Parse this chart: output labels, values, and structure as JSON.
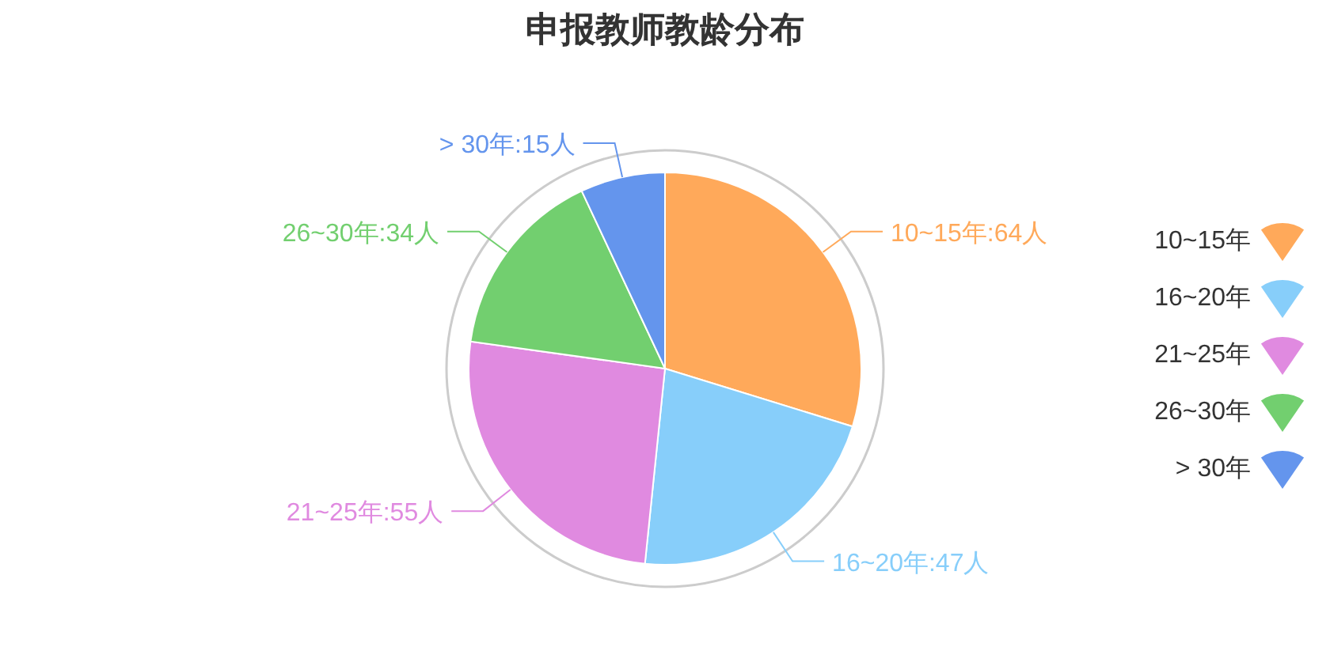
{
  "chart_data": {
    "type": "pie",
    "title": "申报教师教龄分布",
    "categories": [
      "10~15年",
      "16~20年",
      "21~25年",
      "26~30年",
      "> 30年"
    ],
    "values": [
      64,
      47,
      55,
      34,
      15
    ],
    "colors": [
      "#ffa95a",
      "#87cefa",
      "#e08ae0",
      "#72cf6f",
      "#6495ed"
    ],
    "value_labels": [
      "10~15年:64人",
      "16~20年:47人",
      "21~25年:55人",
      "26~30年:34人",
      "> 30年:15人"
    ],
    "legend": "right"
  }
}
